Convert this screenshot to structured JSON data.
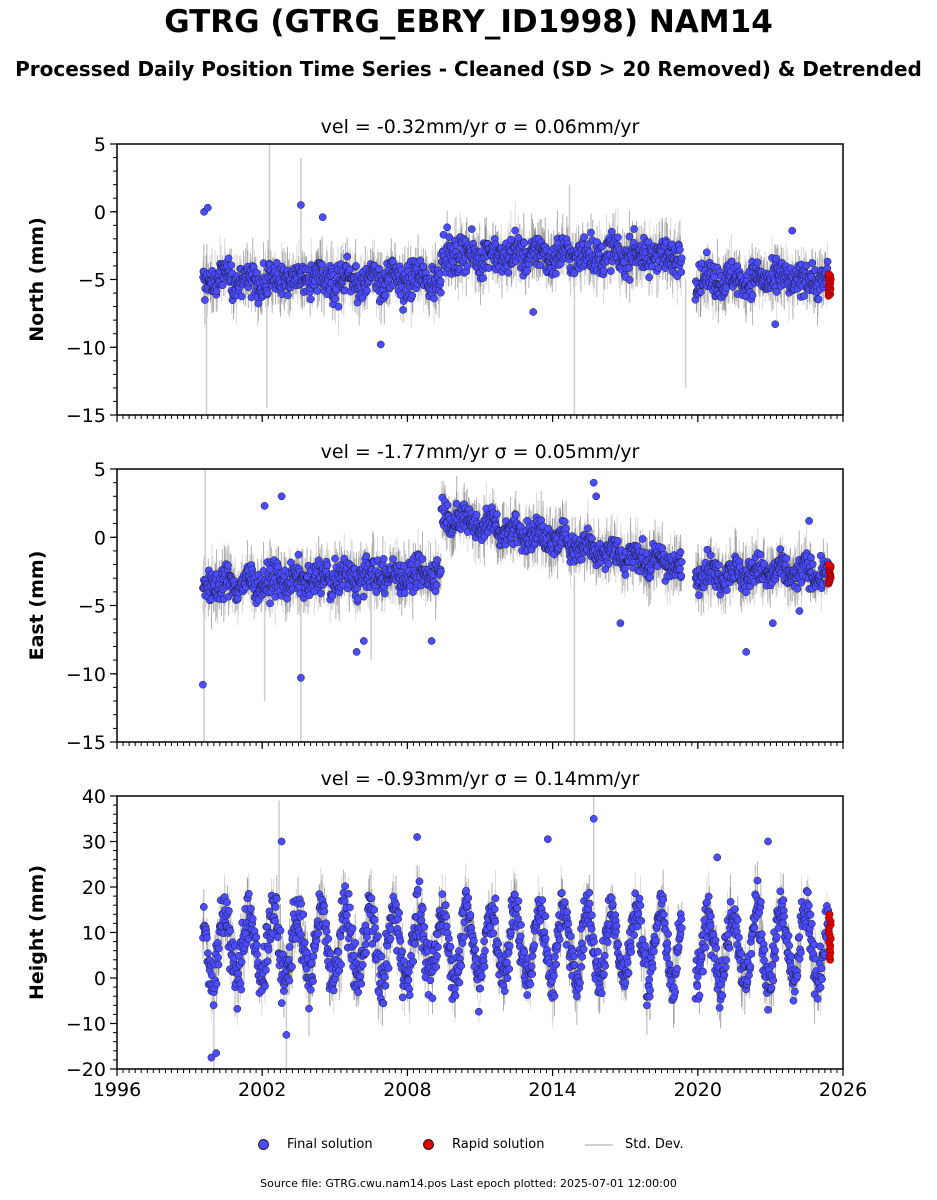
{
  "title": "GTRG (GTRG_EBRY_ID1998) NAM14",
  "subtitle": "Processed Daily Position Time Series - Cleaned (SD > 20 Removed) & Detrended",
  "legend": {
    "final": "Final solution",
    "rapid": "Rapid solution",
    "std": "Std. Dev."
  },
  "source_note": "Source file: GTRG.cwu.nam14.pos  Last epoch plotted: 2025-07-01 12:00:00",
  "colors": {
    "final": "#4b4bff",
    "rapid": "#e00000",
    "std_dev": "#bcbcbc",
    "outline": "#1a1a33"
  },
  "chart_data": [
    {
      "type": "scatter",
      "component": "North",
      "title": "vel = -0.32mm/yr   σ = 0.06mm/yr",
      "xlabel": "",
      "ylabel": "North (mm)",
      "xlim": [
        1996,
        2026
      ],
      "ylim": [
        -15,
        5
      ],
      "yticks": [
        5,
        0,
        -5,
        -10,
        -15
      ],
      "ytick_labels": [
        "5",
        "0",
        "−5",
        "−10",
        "−15"
      ],
      "xticks": [
        1996,
        2002,
        2008,
        2014,
        2020,
        2026
      ],
      "xtick_labels": [
        "",
        "",
        "",
        "",
        "",
        ""
      ],
      "data_start": 1999.55,
      "gaps": [
        [
          2019.35,
          2019.9
        ]
      ],
      "segments": [
        {
          "start": 1999.55,
          "end": 2009.4,
          "mean": -5.0,
          "sd": 1.2,
          "season": 0.4
        },
        {
          "start": 2009.4,
          "end": 2019.35,
          "mean": -3.2,
          "sd": 1.2,
          "season": 0.4
        },
        {
          "start": 2019.9,
          "end": 2025.4,
          "mean": -5.0,
          "sd": 1.1,
          "season": 0.3
        }
      ],
      "outliers": [
        [
          1999.6,
          0.0
        ],
        [
          1999.75,
          0.3
        ],
        [
          2003.6,
          0.5
        ],
        [
          2004.5,
          -0.4
        ],
        [
          2006.9,
          -9.8
        ],
        [
          2013.2,
          -7.4
        ],
        [
          2023.2,
          -8.3
        ],
        [
          2023.9,
          -1.4
        ]
      ],
      "std_spikes": [
        [
          1999.7,
          -15
        ],
        [
          2002.2,
          -14.5
        ],
        [
          2002.3,
          5
        ],
        [
          2003.6,
          4
        ],
        [
          2014.9,
          -15
        ],
        [
          2019.5,
          -13
        ],
        [
          2014.7,
          2
        ]
      ],
      "rapid": {
        "start": 2025.4,
        "end": 2025.5,
        "min": -6.2,
        "max": -4.6
      }
    },
    {
      "type": "scatter",
      "component": "East",
      "title": "vel = -1.77mm/yr   σ = 0.05mm/yr",
      "xlabel": "",
      "ylabel": "East (mm)",
      "xlim": [
        1996,
        2026
      ],
      "ylim": [
        -15,
        5
      ],
      "yticks": [
        5,
        0,
        -5,
        -10,
        -15
      ],
      "ytick_labels": [
        "5",
        "0",
        "−5",
        "−10",
        "−15"
      ],
      "xticks": [
        1996,
        2002,
        2008,
        2014,
        2020,
        2026
      ],
      "xtick_labels": [
        "",
        "",
        "",
        "",
        "",
        ""
      ],
      "data_start": 1999.55,
      "gaps": [
        [
          2019.35,
          2019.9
        ]
      ],
      "segments": [
        {
          "start": 1999.55,
          "end": 2009.4,
          "mean": -2.8,
          "sd": 1.1,
          "season": 0.3,
          "trend_start": -3.5,
          "trend_end": -2.6
        },
        {
          "start": 2009.4,
          "end": 2019.35,
          "mean": -1.0,
          "sd": 1.0,
          "season": 0.4,
          "trend_start": 1.6,
          "trend_end": -2.2
        },
        {
          "start": 2019.9,
          "end": 2025.4,
          "mean": -2.6,
          "sd": 1.0,
          "season": 0.4
        }
      ],
      "outliers": [
        [
          1999.55,
          -10.8
        ],
        [
          2003.6,
          -10.3
        ],
        [
          2002.8,
          3.0
        ],
        [
          2002.1,
          2.3
        ],
        [
          2005.9,
          -8.4
        ],
        [
          2006.2,
          -7.6
        ],
        [
          2009.0,
          -7.6
        ],
        [
          2015.7,
          4.0
        ],
        [
          2015.8,
          3.0
        ],
        [
          2016.8,
          -6.3
        ],
        [
          2022.0,
          -8.4
        ],
        [
          2023.1,
          -6.3
        ],
        [
          2024.2,
          -5.4
        ],
        [
          2024.6,
          1.2
        ]
      ],
      "std_spikes": [
        [
          1999.6,
          -15
        ],
        [
          1999.65,
          5
        ],
        [
          2003.6,
          -15
        ],
        [
          2014.9,
          -15
        ],
        [
          2006.5,
          -9
        ],
        [
          2002.1,
          -12
        ]
      ],
      "rapid": {
        "start": 2025.4,
        "end": 2025.5,
        "min": -3.4,
        "max": -2.0
      }
    },
    {
      "type": "scatter",
      "component": "Height",
      "title": "vel = -0.93mm/yr   σ = 0.14mm/yr",
      "xlabel": "",
      "ylabel": "Height (mm)",
      "xlim": [
        1996,
        2026
      ],
      "ylim": [
        -20,
        40
      ],
      "yticks": [
        40,
        30,
        20,
        10,
        0,
        -10,
        -20
      ],
      "ytick_labels": [
        "40",
        "30",
        "20",
        "10",
        "0",
        "−10",
        "−20"
      ],
      "xticks": [
        1996,
        2002,
        2008,
        2014,
        2020,
        2026
      ],
      "xtick_labels": [
        "1996",
        "2002",
        "2008",
        "2014",
        "2020",
        "2026"
      ],
      "data_start": 1999.55,
      "gaps": [
        [
          2019.35,
          2019.9
        ]
      ],
      "segments": [
        {
          "start": 1999.55,
          "end": 2009.4,
          "mean": 7.0,
          "sd": 5.5,
          "season": 7.5
        },
        {
          "start": 2009.4,
          "end": 2019.35,
          "mean": 7.5,
          "sd": 5.0,
          "season": 7.5
        },
        {
          "start": 2019.9,
          "end": 2025.4,
          "mean": 7.0,
          "sd": 5.0,
          "season": 8.0
        }
      ],
      "outliers": [
        [
          1999.9,
          -17.5
        ],
        [
          2000.1,
          -16.5
        ],
        [
          2002.8,
          30.0
        ],
        [
          2008.4,
          31.0
        ],
        [
          2013.8,
          30.5
        ],
        [
          2015.7,
          35.0
        ],
        [
          2020.8,
          26.5
        ],
        [
          2022.9,
          30.0
        ],
        [
          2003.0,
          -12.5
        ]
      ],
      "std_spikes": [
        [
          2002.7,
          39
        ],
        [
          2000.0,
          -20
        ],
        [
          2015.7,
          40
        ],
        [
          2003.0,
          -20
        ]
      ],
      "rapid": {
        "start": 2025.4,
        "end": 2025.5,
        "min": 4.0,
        "max": 14.0
      }
    }
  ]
}
